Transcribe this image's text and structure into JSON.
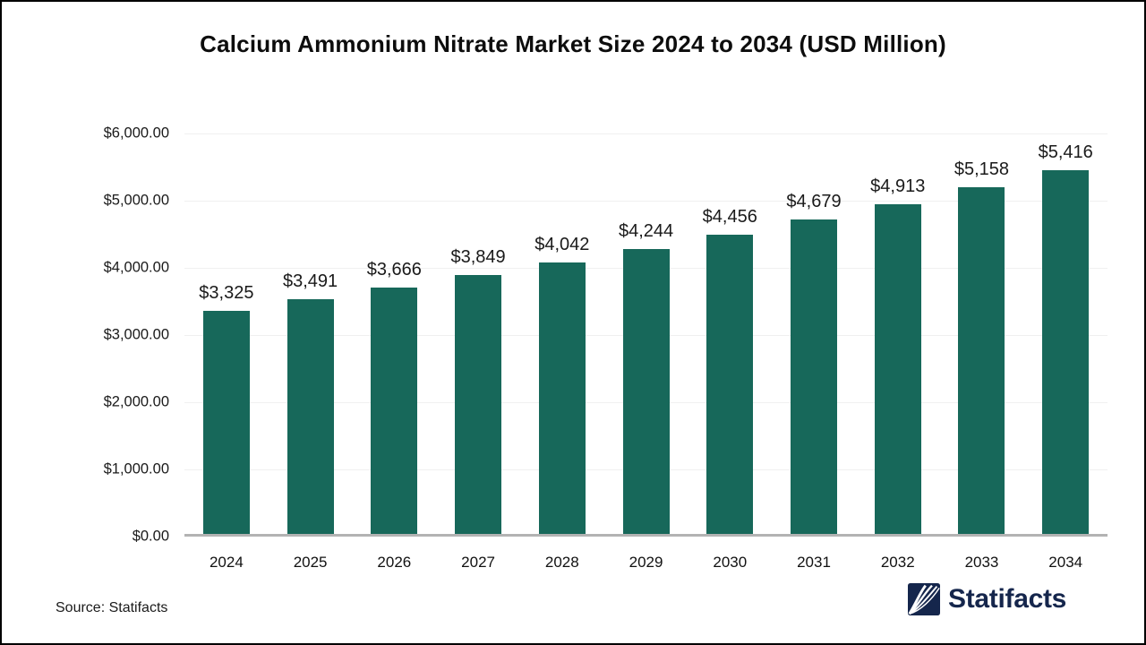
{
  "chart_data": {
    "type": "bar",
    "title": "Calcium Ammonium Nitrate Market Size 2024 to 2034 (USD Million)",
    "categories": [
      "2024",
      "2025",
      "2026",
      "2027",
      "2028",
      "2029",
      "2030",
      "2031",
      "2032",
      "2033",
      "2034"
    ],
    "values": [
      3325,
      3491,
      3666,
      3849,
      4042,
      4244,
      4456,
      4679,
      4913,
      5158,
      5416
    ],
    "value_labels": [
      "$3,325",
      "$3,491",
      "$3,666",
      "$3,849",
      "$4,042",
      "$4,244",
      "$4,456",
      "$4,679",
      "$4,913",
      "$5,158",
      "$5,416"
    ],
    "xlabel": "",
    "ylabel": "",
    "ylim": [
      0,
      6000
    ],
    "y_ticks": [
      {
        "value": 6000,
        "label": "$6,000.00"
      },
      {
        "value": 5000,
        "label": "$5,000.00"
      },
      {
        "value": 4000,
        "label": "$4,000.00"
      },
      {
        "value": 3000,
        "label": "$3,000.00"
      },
      {
        "value": 2000,
        "label": "$2,000.00"
      },
      {
        "value": 1000,
        "label": "$1,000.00"
      },
      {
        "value": 0,
        "label": "$0.00"
      }
    ],
    "grid": "horizontal-only",
    "legend_position": "none",
    "bar_color": "#17685a",
    "gridline_color": "#f0f0f0",
    "axis_line_color": "#b3b3b3"
  },
  "footer": {
    "source_label": "Source: Statifacts",
    "brand_name": "Statifacts",
    "brand_color": "#15264c"
  }
}
